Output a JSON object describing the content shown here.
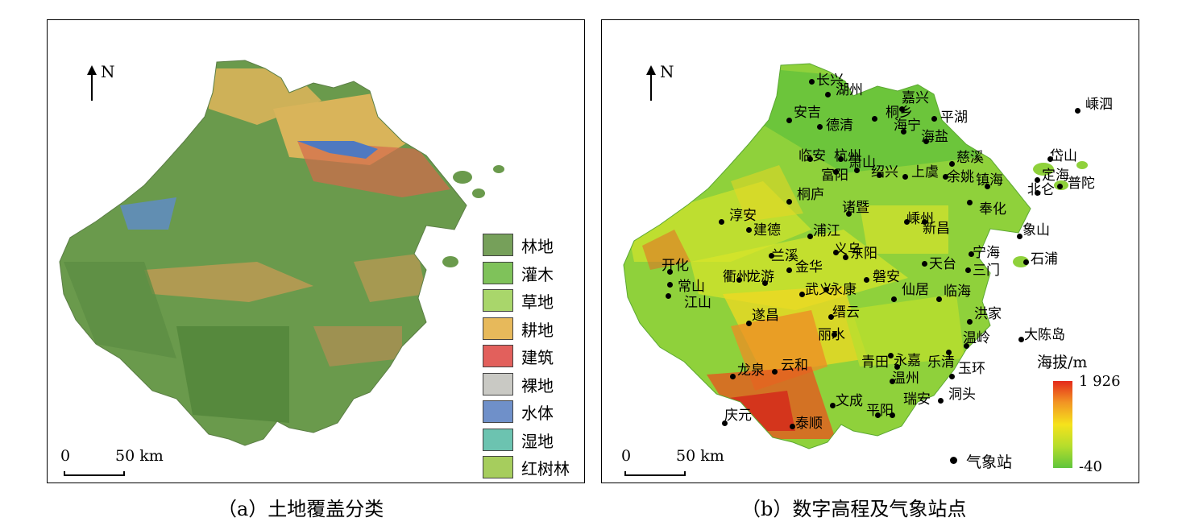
{
  "north_label": "N",
  "scale": {
    "zero": "0",
    "fifty": "50 km"
  },
  "panel_a": {
    "caption": "（a）土地覆盖分类",
    "legend": [
      {
        "label": "林地",
        "color": "#76a05a"
      },
      {
        "label": "灌木",
        "color": "#7fc25a"
      },
      {
        "label": "草地",
        "color": "#a9d66b"
      },
      {
        "label": "耕地",
        "color": "#e7b95b"
      },
      {
        "label": "建筑",
        "color": "#e2605c"
      },
      {
        "label": "裸地",
        "color": "#c9c9c4"
      },
      {
        "label": "水体",
        "color": "#6f90c9"
      },
      {
        "label": "湿地",
        "color": "#6cc3b0"
      },
      {
        "label": "红树林",
        "color": "#a6cd5d"
      }
    ]
  },
  "panel_b": {
    "caption": "（b）数字高程及气象站点",
    "elevation_title": "海拔/m",
    "elevation_max": "1 926",
    "elevation_min": "-40",
    "station_key": "气象站",
    "stations": [
      "长兴",
      "湖州",
      "嘉兴",
      "嵊泗",
      "安吉",
      "德清",
      "桐乡",
      "平湖",
      "海宁",
      "海盐",
      "临安",
      "杭州",
      "萧山",
      "慈溪",
      "岱山",
      "富阳",
      "绍兴",
      "上虞",
      "余姚",
      "镇海",
      "定海",
      "普陀",
      "北仑",
      "桐庐",
      "诸暨",
      "奉化",
      "淳安",
      "建德",
      "浦江",
      "嵊州",
      "新昌",
      "象山",
      "义乌",
      "东阳",
      "宁海",
      "兰溪",
      "开化",
      "金华",
      "天台",
      "三门",
      "石浦",
      "衢州",
      "龙游",
      "磐安",
      "常山",
      "武义",
      "永康",
      "仙居",
      "临海",
      "江山",
      "遂昌",
      "缙云",
      "洪家",
      "丽水",
      "温岭",
      "大陈岛",
      "青田",
      "永嘉",
      "乐清",
      "玉环",
      "龙泉",
      "云和",
      "温州",
      "洞头",
      "文成",
      "瑞安",
      "平阳",
      "庆元",
      "泰顺"
    ]
  }
}
